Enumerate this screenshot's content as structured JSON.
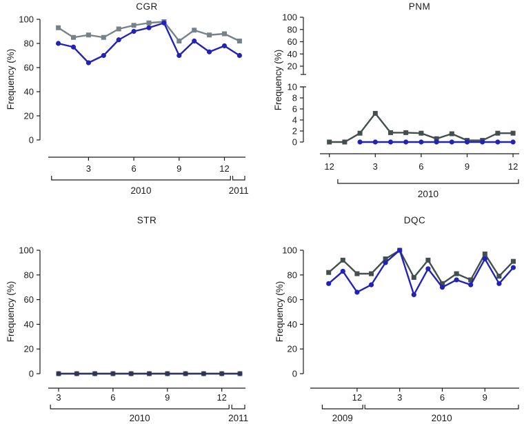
{
  "figure": {
    "background": "#ffffff",
    "text_color": "#1a1a1a",
    "n_charts": 4
  },
  "chart_data": [
    {
      "id": "cgr",
      "type": "line",
      "title": "CGR",
      "ylabel": "Frequency (%)",
      "ylim": [
        0,
        100
      ],
      "yticks": [
        0,
        20,
        40,
        60,
        80,
        100
      ],
      "x_ticks": [
        {
          "i": 2,
          "label": "3"
        },
        {
          "i": 5,
          "label": "6"
        },
        {
          "i": 8,
          "label": "9"
        },
        {
          "i": 11,
          "label": "12"
        }
      ],
      "year_brackets": [
        {
          "label": "2010",
          "from": 0,
          "to": 11
        },
        {
          "label": "2011",
          "from": 12,
          "to": 12
        }
      ],
      "series": [
        {
          "name": "gray-squares",
          "marker": "square",
          "color": "#75828A",
          "values": [
            93,
            85,
            87,
            85,
            92,
            95,
            97,
            98,
            82,
            91,
            87,
            88,
            82
          ]
        },
        {
          "name": "blue-circles",
          "marker": "circle",
          "color": "#2123B8",
          "values": [
            80,
            77,
            64,
            70,
            83,
            90,
            93,
            97,
            70,
            82,
            73,
            78,
            70
          ]
        }
      ]
    },
    {
      "id": "pnm",
      "type": "line",
      "title": "PNM",
      "ylabel": "Frequency (%)",
      "ylim": [
        0,
        100
      ],
      "broken_axis": {
        "upper_ticks": [
          100,
          80,
          60,
          40,
          20
        ],
        "lower_ticks": [
          10,
          8,
          6,
          4,
          2,
          0
        ]
      },
      "x_ticks": [
        {
          "i": 0,
          "label": "12"
        },
        {
          "i": 3,
          "label": "3"
        },
        {
          "i": 6,
          "label": "6"
        },
        {
          "i": 9,
          "label": "9"
        },
        {
          "i": 12,
          "label": "12"
        }
      ],
      "year_brackets": [
        {
          "label": "2010",
          "from": 1,
          "to": 12
        }
      ],
      "series": [
        {
          "name": "gray-squares",
          "marker": "square",
          "color": "#434E4F",
          "values": [
            0,
            0,
            1.6,
            5.2,
            1.7,
            1.7,
            1.6,
            0.6,
            1.5,
            0.3,
            0.3,
            1.6,
            1.6
          ]
        },
        {
          "name": "blue-circles",
          "marker": "circle",
          "color": "#2123B8",
          "values": [
            null,
            null,
            0,
            0,
            0,
            0,
            0,
            0,
            0,
            0,
            0,
            0,
            0
          ]
        }
      ]
    },
    {
      "id": "str",
      "type": "line",
      "title": "STR",
      "ylabel": "Frequency (%)",
      "ylim": [
        0,
        100
      ],
      "yticks": [
        0,
        20,
        40,
        60,
        80,
        100
      ],
      "x_ticks": [
        {
          "i": 0,
          "label": "3"
        },
        {
          "i": 3,
          "label": "6"
        },
        {
          "i": 6,
          "label": "9"
        },
        {
          "i": 9,
          "label": "12"
        }
      ],
      "year_brackets": [
        {
          "label": "2010",
          "from": 0,
          "to": 9
        },
        {
          "label": "2011",
          "from": 10,
          "to": 10
        }
      ],
      "series": [
        {
          "name": "gray-squares",
          "marker": "square",
          "color": "#5C6B7A",
          "values": [
            0,
            0,
            0,
            0,
            0,
            0,
            0,
            0,
            0,
            0,
            0
          ]
        },
        {
          "name": "blue-circles",
          "marker": "circle",
          "color": "#2D3755",
          "values": [
            0,
            0,
            0,
            0,
            0,
            0,
            0,
            0,
            0,
            0,
            0
          ]
        }
      ]
    },
    {
      "id": "dqc",
      "type": "line",
      "title": "DQC",
      "ylabel": "Frequency (%)",
      "ylim": [
        0,
        100
      ],
      "yticks": [
        0,
        20,
        40,
        60,
        80,
        100
      ],
      "x_ticks": [
        {
          "i": 2,
          "label": "12"
        },
        {
          "i": 5,
          "label": "3"
        },
        {
          "i": 8,
          "label": "6"
        },
        {
          "i": 11,
          "label": "9"
        }
      ],
      "year_brackets": [
        {
          "label": "2009",
          "from": 0,
          "to": 2
        },
        {
          "label": "2010",
          "from": 3,
          "to": 13
        }
      ],
      "series": [
        {
          "name": "gray-squares",
          "marker": "square",
          "color": "#434E4F",
          "values": [
            82,
            92,
            81,
            81,
            93,
            100,
            78,
            92,
            73,
            81,
            76,
            97,
            79,
            91
          ]
        },
        {
          "name": "blue-circles",
          "marker": "circle",
          "color": "#2123B8",
          "values": [
            73,
            83,
            66,
            72,
            90,
            100,
            64,
            85,
            70,
            76,
            72,
            93,
            73,
            86
          ]
        }
      ]
    }
  ]
}
